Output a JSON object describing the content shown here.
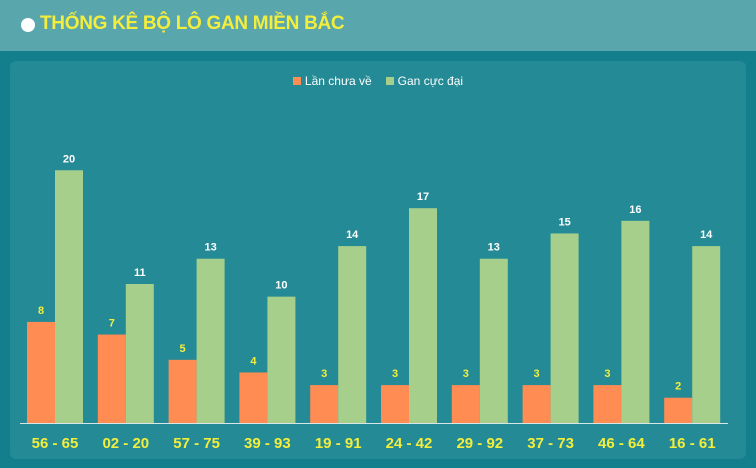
{
  "header": {
    "title": "THỐNG KÊ BỘ LÔ GAN MIỀN BẮC",
    "bullet_icon": "circle-bullet"
  },
  "colors": {
    "series_a": "#ff8c52",
    "series_b": "#a6cf8c",
    "label_a": "#f3ee3c",
    "label_b": "#ffffff",
    "tick": "#f3ee3c"
  },
  "chart_data": {
    "type": "bar",
    "title": "",
    "xlabel": "",
    "ylabel": "",
    "ylim": [
      0,
      22
    ],
    "grid": false,
    "legend_position": "top-center",
    "categories": [
      "56 - 65",
      "02 - 20",
      "57 - 75",
      "39 - 93",
      "19 - 91",
      "24 - 42",
      "29 - 92",
      "37 - 73",
      "46 - 64",
      "16 - 61"
    ],
    "series": [
      {
        "name": "Lần chưa về",
        "values": [
          8,
          7,
          5,
          4,
          3,
          3,
          3,
          3,
          3,
          2
        ]
      },
      {
        "name": "Gan cực đại",
        "values": [
          20,
          11,
          13,
          10,
          14,
          17,
          13,
          15,
          16,
          14
        ]
      }
    ]
  }
}
